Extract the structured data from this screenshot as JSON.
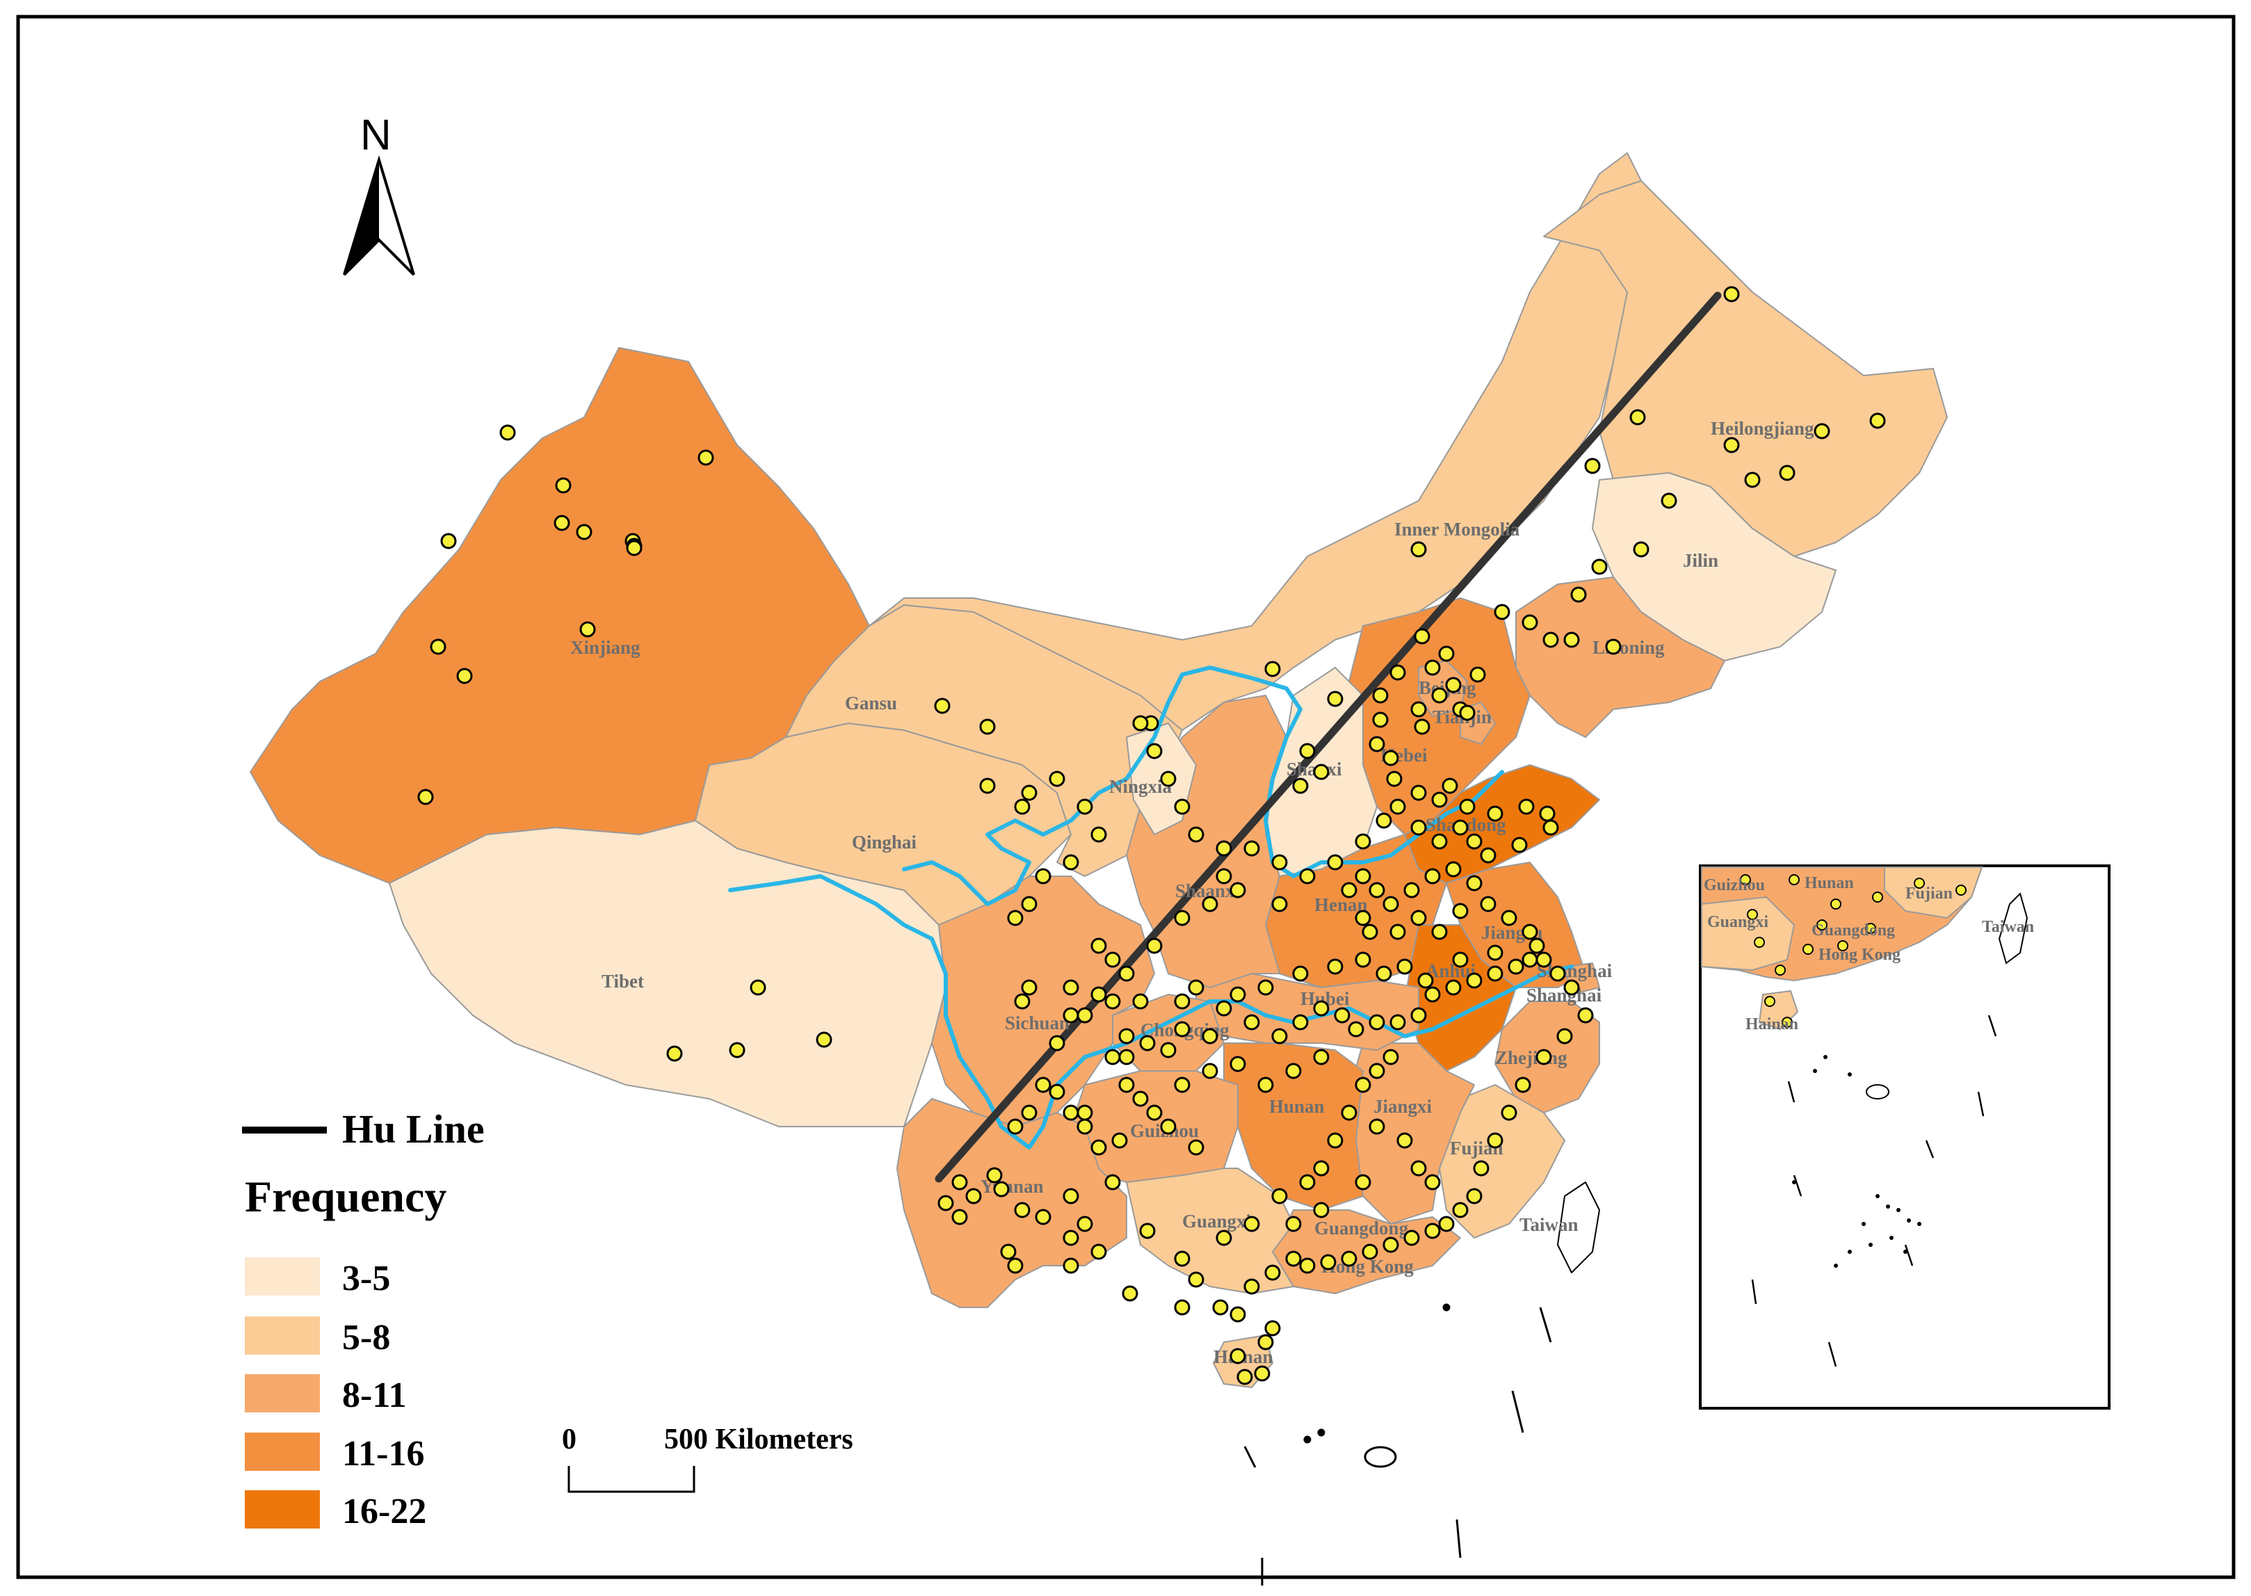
{
  "north_arrow": {
    "label": "N"
  },
  "hu_line": {
    "label": "Hu Line",
    "color": "#333333"
  },
  "legend": {
    "title": "Frequency",
    "classes": [
      {
        "label": "3-5",
        "color": "#fde8cd"
      },
      {
        "label": "5-8",
        "color": "#fbcc96"
      },
      {
        "label": "8-11",
        "color": "#f7a96b"
      },
      {
        "label": "11-16",
        "color": "#f39040"
      },
      {
        "label": "16-22",
        "color": "#ee770c"
      }
    ]
  },
  "scale_bar": {
    "zero": "0",
    "distance": "500 Kilometers"
  },
  "colors": {
    "river": "#29b6e6",
    "point_fill": "#f6ef3c",
    "point_stroke": "#000000",
    "border": "#9a9a9a"
  },
  "provinces": [
    {
      "name": "Heilongjiang",
      "class": "5-8"
    },
    {
      "name": "Jilin",
      "class": "3-5"
    },
    {
      "name": "Liaoning",
      "class": "8-11"
    },
    {
      "name": "Inner Mongolia",
      "class": "5-8"
    },
    {
      "name": "Beijing",
      "class": "8-11"
    },
    {
      "name": "Tianjin",
      "class": "8-11"
    },
    {
      "name": "Hebei",
      "class": "11-16"
    },
    {
      "name": "Shanxi",
      "class": "3-5"
    },
    {
      "name": "Shandong",
      "class": "16-22"
    },
    {
      "name": "Henan",
      "class": "11-16"
    },
    {
      "name": "Jiangsu",
      "class": "11-16"
    },
    {
      "name": "Anhui",
      "class": "16-22"
    },
    {
      "name": "Shanghai",
      "class": "8-11"
    },
    {
      "name": "Zhejiang",
      "class": "8-11"
    },
    {
      "name": "Fujian",
      "class": "5-8"
    },
    {
      "name": "Taiwan",
      "class": "none"
    },
    {
      "name": "Jiangxi",
      "class": "8-11"
    },
    {
      "name": "Hubei",
      "class": "8-11"
    },
    {
      "name": "Hunan",
      "class": "11-16"
    },
    {
      "name": "Guangdong",
      "class": "8-11"
    },
    {
      "name": "Hong Kong",
      "class": "8-11"
    },
    {
      "name": "Guangxi",
      "class": "5-8"
    },
    {
      "name": "Hainan",
      "class": "5-8"
    },
    {
      "name": "Guizhou",
      "class": "8-11"
    },
    {
      "name": "Yunnan",
      "class": "8-11"
    },
    {
      "name": "Chongqing",
      "class": "8-11"
    },
    {
      "name": "Sichuan",
      "class": "8-11"
    },
    {
      "name": "Shaanxi",
      "class": "8-11"
    },
    {
      "name": "Ningxia",
      "class": "3-5"
    },
    {
      "name": "Gansu",
      "class": "5-8"
    },
    {
      "name": "Qinghai",
      "class": "5-8"
    },
    {
      "name": "Tibet",
      "class": "3-5"
    },
    {
      "name": "Xinjiang",
      "class": "11-16"
    }
  ],
  "inset_labels": {
    "guizhou": "Guizhou",
    "hunan": "Hunan",
    "fujian": "Fujian",
    "taiwan": "Taiwan",
    "guangxi": "Guangxi",
    "guangdong": "Guangdong",
    "hongkong": "Hong Kong",
    "hainan": "Hainan"
  }
}
